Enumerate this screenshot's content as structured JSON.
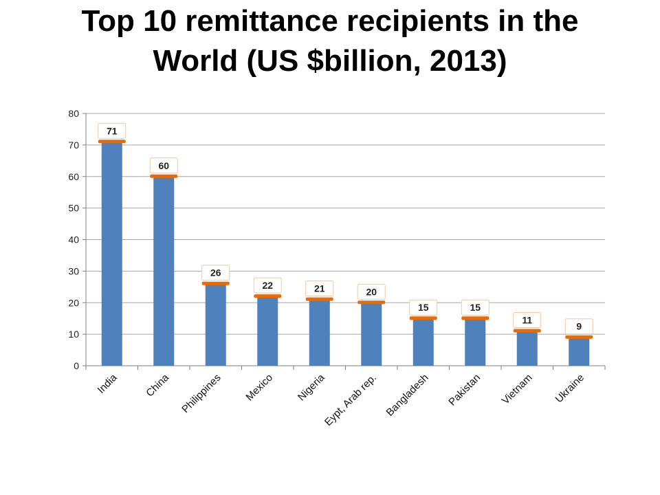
{
  "title": "Top 10 remittance recipients in the World  (US $billion, 2013)",
  "chart_data": {
    "type": "bar",
    "title": "Top 10 remittance recipients in the World  (US $billion, 2013)",
    "xlabel": "",
    "ylabel": "",
    "categories": [
      "India",
      "China",
      "Philippines",
      "Mexico",
      "Nigeria",
      "Eypt, Arab rep.",
      "Bangladesh",
      "Pakistan",
      "Vietnam",
      "Ukraine"
    ],
    "values": [
      71,
      60,
      26,
      22,
      21,
      20,
      15,
      15,
      11,
      9
    ],
    "data_labels": [
      "71",
      "60",
      "26",
      "22",
      "21",
      "20",
      "15",
      "15",
      "11",
      "9"
    ],
    "ylim": [
      0,
      80
    ],
    "yticks": [
      0,
      10,
      20,
      30,
      40,
      50,
      60,
      70,
      80
    ],
    "grid": true,
    "legend": "none",
    "colors": {
      "bar": "#4f81bd",
      "bar_cap": "#e46c0a",
      "grid": "#a6a6a6",
      "axis": "#7f7f7f"
    }
  }
}
